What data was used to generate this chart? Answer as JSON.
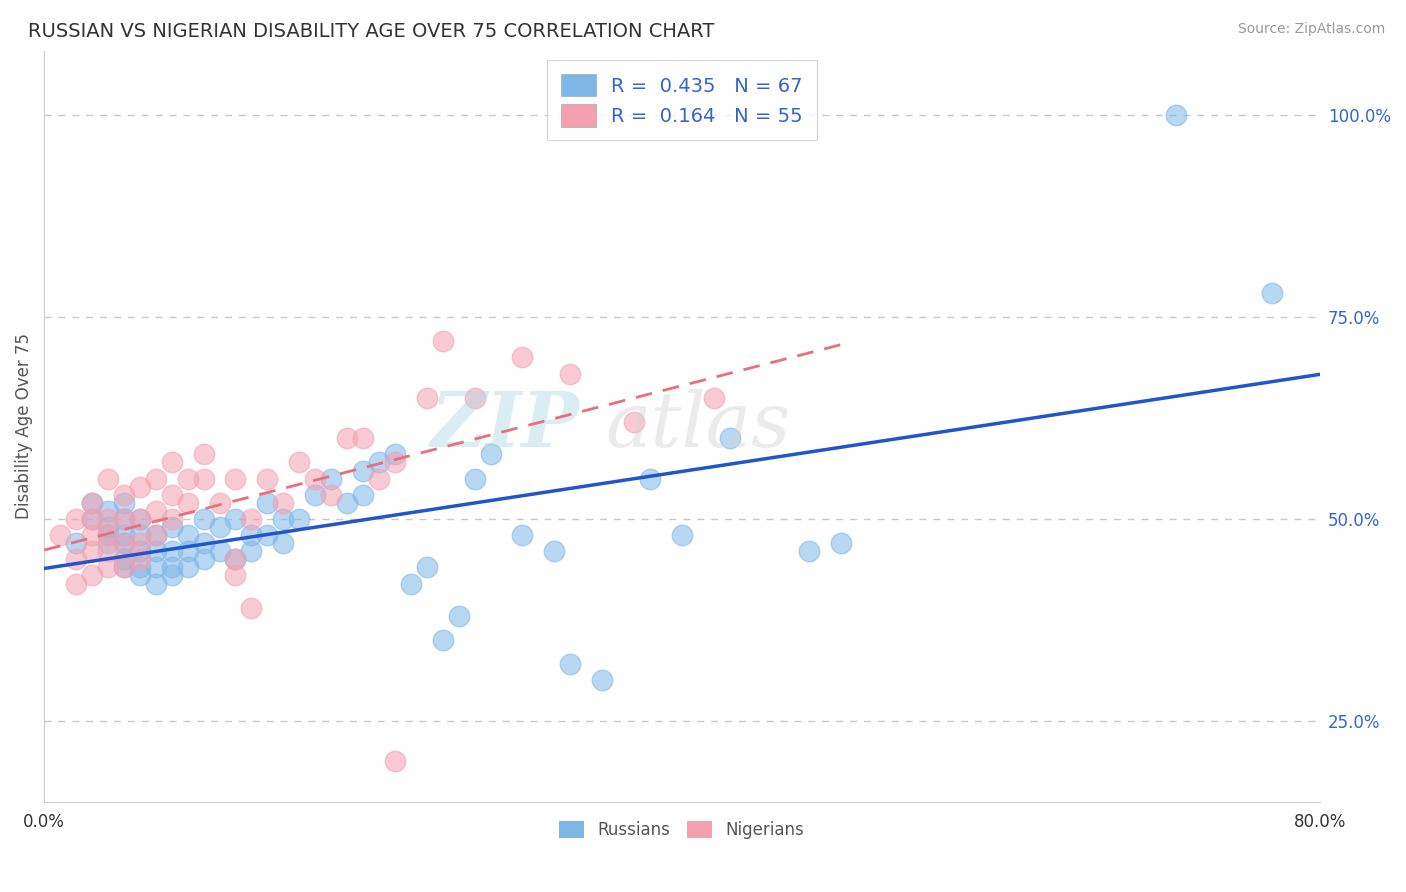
{
  "title": "RUSSIAN VS NIGERIAN DISABILITY AGE OVER 75 CORRELATION CHART",
  "source": "Source: ZipAtlas.com",
  "ylabel": "Disability Age Over 75",
  "xlim": [
    0.0,
    0.8
  ],
  "ylim": [
    0.15,
    1.08
  ],
  "russian_R": 0.435,
  "russian_N": 67,
  "nigerian_R": 0.164,
  "nigerian_N": 55,
  "russian_color": "#7EB6E8",
  "nigerian_color": "#F4A0B0",
  "russian_line_color": "#2255CC",
  "nigerian_line_color": "#E8707A",
  "dashed_line_color": "#C8C8C8",
  "grid_color": "#CCCCCC",
  "title_color": "#333333",
  "stat_color": "#3366CC",
  "background_color": "#FFFFFF",
  "russians_scatter_x": [
    0.02,
    0.03,
    0.03,
    0.04,
    0.04,
    0.04,
    0.04,
    0.05,
    0.05,
    0.05,
    0.05,
    0.05,
    0.05,
    0.06,
    0.06,
    0.06,
    0.06,
    0.06,
    0.07,
    0.07,
    0.07,
    0.07,
    0.08,
    0.08,
    0.08,
    0.08,
    0.09,
    0.09,
    0.09,
    0.1,
    0.1,
    0.1,
    0.11,
    0.11,
    0.12,
    0.12,
    0.13,
    0.13,
    0.14,
    0.14,
    0.15,
    0.15,
    0.16,
    0.17,
    0.18,
    0.19,
    0.2,
    0.2,
    0.21,
    0.22,
    0.23,
    0.24,
    0.25,
    0.26,
    0.27,
    0.28,
    0.3,
    0.32,
    0.33,
    0.35,
    0.38,
    0.4,
    0.43,
    0.48,
    0.5,
    0.71,
    0.77
  ],
  "russians_scatter_y": [
    0.47,
    0.5,
    0.52,
    0.47,
    0.48,
    0.49,
    0.51,
    0.44,
    0.45,
    0.47,
    0.48,
    0.5,
    0.52,
    0.43,
    0.44,
    0.46,
    0.48,
    0.5,
    0.42,
    0.44,
    0.46,
    0.48,
    0.43,
    0.44,
    0.46,
    0.49,
    0.44,
    0.46,
    0.48,
    0.45,
    0.47,
    0.5,
    0.46,
    0.49,
    0.45,
    0.5,
    0.46,
    0.48,
    0.48,
    0.52,
    0.47,
    0.5,
    0.5,
    0.53,
    0.55,
    0.52,
    0.53,
    0.56,
    0.57,
    0.58,
    0.42,
    0.44,
    0.35,
    0.38,
    0.55,
    0.58,
    0.48,
    0.46,
    0.32,
    0.3,
    0.55,
    0.48,
    0.6,
    0.46,
    0.47,
    1.0,
    0.78
  ],
  "nigerians_scatter_x": [
    0.01,
    0.02,
    0.02,
    0.02,
    0.03,
    0.03,
    0.03,
    0.03,
    0.03,
    0.04,
    0.04,
    0.04,
    0.04,
    0.04,
    0.05,
    0.05,
    0.05,
    0.05,
    0.06,
    0.06,
    0.06,
    0.06,
    0.07,
    0.07,
    0.07,
    0.08,
    0.08,
    0.08,
    0.09,
    0.09,
    0.1,
    0.1,
    0.11,
    0.12,
    0.12,
    0.13,
    0.14,
    0.15,
    0.16,
    0.17,
    0.18,
    0.19,
    0.2,
    0.21,
    0.22,
    0.24,
    0.25,
    0.27,
    0.3,
    0.33,
    0.37,
    0.42,
    0.12,
    0.13,
    0.22
  ],
  "nigerians_scatter_y": [
    0.48,
    0.42,
    0.45,
    0.5,
    0.43,
    0.46,
    0.48,
    0.5,
    0.52,
    0.44,
    0.46,
    0.48,
    0.5,
    0.55,
    0.44,
    0.47,
    0.5,
    0.53,
    0.45,
    0.47,
    0.5,
    0.54,
    0.48,
    0.51,
    0.55,
    0.5,
    0.53,
    0.57,
    0.52,
    0.55,
    0.55,
    0.58,
    0.52,
    0.55,
    0.45,
    0.5,
    0.55,
    0.52,
    0.57,
    0.55,
    0.53,
    0.6,
    0.6,
    0.55,
    0.57,
    0.65,
    0.72,
    0.65,
    0.7,
    0.68,
    0.62,
    0.65,
    0.43,
    0.39,
    0.2
  ]
}
